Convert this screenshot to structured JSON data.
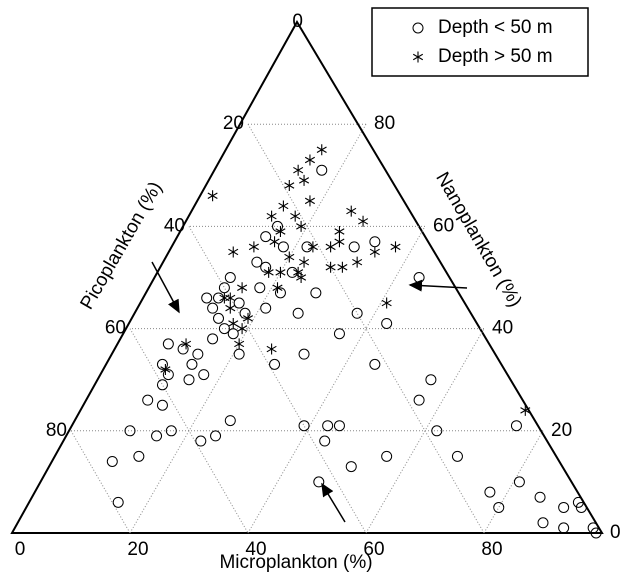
{
  "chart_data": {
    "type": "ternary",
    "axes": {
      "bottom": {
        "label": "Microplankton (%)",
        "ticks": [
          0,
          20,
          40,
          60,
          80
        ]
      },
      "left": {
        "label": "Picoplankton (%)",
        "ticks": [
          0,
          20,
          40,
          60,
          80
        ]
      },
      "right": {
        "label": "Nanoplankton (%)",
        "ticks": [
          0,
          20,
          40,
          60,
          80
        ]
      }
    },
    "grid": true,
    "legend": "upper right",
    "series": [
      {
        "name": "Depth < 50 m",
        "marker": "circle",
        "color": "#000000",
        "micro": [
          17,
          33,
          30,
          44,
          43,
          37,
          36,
          32,
          28,
          45,
          56,
          56,
          45,
          43,
          39,
          44,
          62,
          68,
          56,
          51,
          47,
          75,
          81,
          77,
          80,
          86,
          91,
          93,
          94,
          98,
          99,
          89,
          93,
          10,
          15,
          17,
          25,
          23,
          26,
          14,
          10,
          15,
          10,
          13,
          11,
          11,
          9,
          8,
          11,
          14,
          14,
          17,
          15,
          15,
          14,
          10,
          12,
          12,
          12,
          12,
          16,
          18,
          16,
          21,
          18,
          18,
          21,
          15,
          17,
          22,
          18,
          27,
          28,
          22,
          14,
          15,
          22
        ],
        "nano": [
          71,
          57,
          56,
          50,
          41,
          43,
          39,
          35,
          33,
          33,
          30,
          26,
          21,
          21,
          21,
          18,
          20,
          15,
          15,
          13,
          10,
          21,
          10,
          8,
          5,
          7,
          5,
          6,
          5,
          1,
          0,
          2,
          1,
          20,
          19,
          20,
          19,
          18,
          22,
          15,
          14,
          6,
          26,
          25,
          29,
          31,
          33,
          37,
          36,
          33,
          35,
          31,
          30,
          38,
          42,
          46,
          44,
          46,
          48,
          50,
          45,
          43,
          40,
          35,
          39,
          48,
          44,
          53,
          52,
          47,
          56,
          43,
          47,
          51,
          58,
          60,
          56
        ]
      },
      {
        "name": "Depth > 50 m",
        "marker": "star",
        "color": "#000000",
        "micro": [
          15,
          14,
          13,
          13,
          15,
          1,
          18,
          14,
          17,
          13,
          19,
          16,
          26,
          29,
          26,
          27,
          26,
          23,
          23,
          20,
          16,
          10,
          13,
          20,
          23,
          28,
          30,
          32,
          34,
          37,
          41,
          21,
          24,
          15,
          14,
          15,
          19,
          17,
          19,
          20,
          26,
          13,
          11,
          10,
          75,
          18
        ],
        "nano": [
          75,
          73,
          71,
          68,
          69,
          66,
          65,
          64,
          62,
          62,
          60,
          59,
          63,
          61,
          59,
          57,
          56,
          56,
          53,
          54,
          57,
          55,
          56,
          51,
          51,
          52,
          52,
          53,
          55,
          56,
          45,
          48,
          50,
          48,
          46,
          44,
          42,
          41,
          40,
          37,
          36,
          46,
          37,
          32,
          24,
          51
        ]
      }
    ]
  }
}
